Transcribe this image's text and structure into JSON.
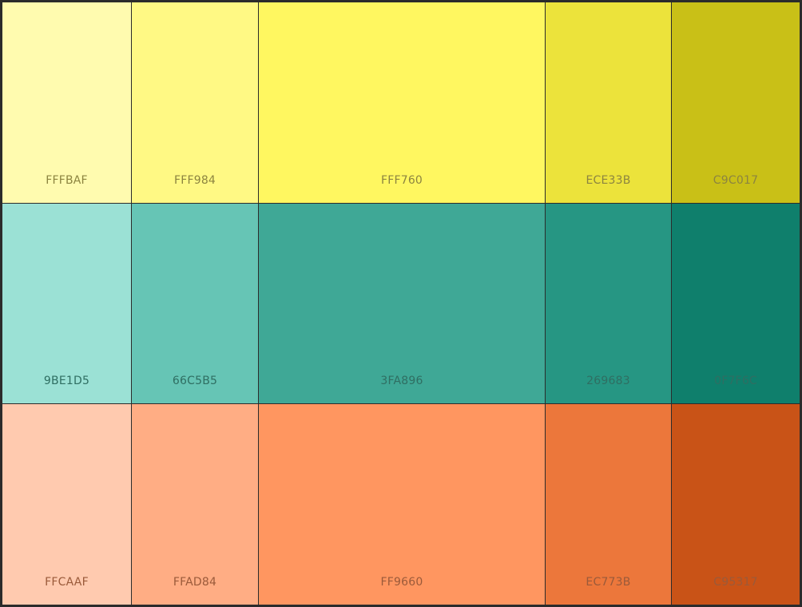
{
  "palette": {
    "rows": [
      {
        "name": "yellow",
        "label_color": "#8c8440",
        "swatches": [
          {
            "code": "FFFBAF",
            "color": "#FFFBAF"
          },
          {
            "code": "FFF984",
            "color": "#FFF984"
          },
          {
            "code": "FFF760",
            "color": "#FFF760"
          },
          {
            "code": "ECE33B",
            "color": "#ECE33B"
          },
          {
            "code": "C9C017",
            "color": "#C9C017"
          }
        ]
      },
      {
        "name": "teal",
        "label_color": "#2f6e62",
        "swatches": [
          {
            "code": "9BE1D5",
            "color": "#9BE1D5"
          },
          {
            "code": "66C5B5",
            "color": "#66C5B5"
          },
          {
            "code": "3FA896",
            "color": "#3FA896"
          },
          {
            "code": "269683",
            "color": "#269683"
          },
          {
            "code": "0F7F6C",
            "color": "#0F7F6C"
          }
        ]
      },
      {
        "name": "orange",
        "label_color": "#9a5a3a",
        "swatches": [
          {
            "code": "FFCAAF",
            "color": "#FFCAAF"
          },
          {
            "code": "FFAD84",
            "color": "#FFAD84"
          },
          {
            "code": "FF9660",
            "color": "#FF9660"
          },
          {
            "code": "EC773B",
            "color": "#EC773B"
          },
          {
            "code": "C95317",
            "color": "#C95317"
          }
        ]
      }
    ]
  }
}
